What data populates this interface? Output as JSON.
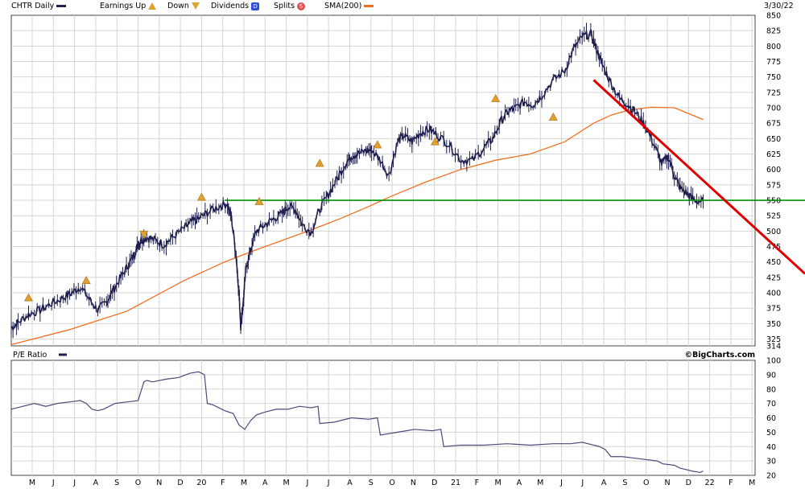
{
  "legend": {
    "ticker_label": "CHTR Daily",
    "earnings_up": "Earnings Up",
    "earnings_down": "Down",
    "dividends": "Dividends",
    "dividends_glyph": "D",
    "splits": "Splits",
    "splits_glyph": "S",
    "sma": "SMA(200)",
    "date": "3/30/22",
    "pe_label": "P/E Ratio",
    "credit": "©BigCharts.com"
  },
  "colors": {
    "price": "#1f1f4f",
    "sma": "#f07020",
    "support": "#009000",
    "trend": "#e00000",
    "grid": "#d4d4d4",
    "earnings_marker": "#e0a030",
    "dividend_box": "#3050e0",
    "split_circle": "#e05050"
  },
  "chart_data": [
    {
      "type": "line",
      "title": "CHTR Daily",
      "ylim": [
        314,
        850
      ],
      "y_ticks": [
        850,
        825,
        800,
        775,
        750,
        725,
        700,
        675,
        650,
        625,
        600,
        575,
        550,
        525,
        500,
        475,
        450,
        425,
        400,
        375,
        350,
        325,
        314
      ],
      "x_ticks": [
        "M",
        "J",
        "J",
        "A",
        "S",
        "O",
        "N",
        "D",
        "20",
        "F",
        "M",
        "A",
        "M",
        "J",
        "J",
        "A",
        "S",
        "O",
        "N",
        "D",
        "21",
        "F",
        "M",
        "A",
        "M",
        "J",
        "J",
        "A",
        "S",
        "O",
        "N",
        "D",
        "22",
        "F",
        "M"
      ],
      "grid": true,
      "legend_position": "top",
      "series": [
        {
          "name": "CHTR Daily",
          "x": [
            0,
            1.2,
            3,
            5,
            7,
            9,
            10.5,
            12,
            13.5,
            15,
            16.5,
            17.5,
            19,
            20.3,
            21.3,
            22,
            22.5,
            23.5,
            25,
            26.5,
            28,
            30,
            31.3,
            32.5,
            34,
            36,
            37.5,
            38.2,
            39,
            39.5,
            39.8,
            40.2,
            40.7,
            41.5,
            42.5,
            44,
            45.5,
            47,
            48,
            49.3,
            50.5,
            52,
            53.5,
            55,
            56.5,
            58,
            59,
            60,
            61.5,
            62.5,
            64,
            65.5,
            67,
            68,
            69.5,
            71,
            72.5,
            74,
            76,
            78,
            80,
            82,
            83.5,
            85,
            86.3,
            87.5,
            89,
            90.5,
            92,
            94,
            96,
            97.5,
            99,
            100.5,
            101.5,
            102.5,
            104,
            105.5,
            107,
            108.5,
            110,
            111.5,
            112.8,
            114,
            115,
            116,
            117.3,
            118.5,
            120
          ],
          "y": [
            343,
            352,
            365,
            372,
            383,
            392,
            400,
            410,
            390,
            372,
            385,
            402,
            425,
            445,
            462,
            478,
            485,
            490,
            485,
            478,
            490,
            505,
            515,
            520,
            530,
            540,
            545,
            520,
            460,
            400,
            345,
            380,
            440,
            470,
            500,
            510,
            520,
            528,
            540,
            535,
            510,
            498,
            535,
            560,
            585,
            610,
            622,
            625,
            630,
            632,
            615,
            590,
            645,
            655,
            645,
            660,
            665,
            655,
            640,
            615,
            615,
            635,
            650,
            680,
            695,
            700,
            710,
            705,
            720,
            745,
            760,
            795,
            815,
            820,
            795,
            770,
            740,
            715,
            705,
            690,
            670,
            640,
            610,
            620,
            590,
            570,
            560,
            550,
            548
          ]
        },
        {
          "name": "SMA(200)",
          "x": [
            0,
            10,
            20,
            30,
            37,
            42,
            47,
            52,
            57,
            62,
            66,
            72,
            78,
            84,
            90,
            96,
            101,
            104,
            107,
            111,
            115,
            120
          ],
          "y": [
            316,
            340,
            370,
            420,
            450,
            468,
            485,
            502,
            520,
            540,
            557,
            580,
            600,
            615,
            625,
            645,
            675,
            688,
            696,
            701,
            700,
            681
          ]
        }
      ],
      "annotations": [
        {
          "label": "Support",
          "y": 550
        },
        {
          "label": "Downtrend",
          "x": [
            101,
            129
          ],
          "y": [
            745,
            505
          ]
        }
      ],
      "earnings_markers": [
        {
          "x": 3,
          "y": 392,
          "kind": "up"
        },
        {
          "x": 13,
          "y": 420,
          "kind": "up"
        },
        {
          "x": 23,
          "y": 495,
          "kind": "down"
        },
        {
          "x": 33,
          "y": 555,
          "kind": "up"
        },
        {
          "x": 43,
          "y": 548,
          "kind": "up"
        },
        {
          "x": 53.5,
          "y": 610,
          "kind": "up"
        },
        {
          "x": 63.5,
          "y": 640,
          "kind": "up"
        },
        {
          "x": 73.5,
          "y": 645,
          "kind": "up"
        },
        {
          "x": 84,
          "y": 715,
          "kind": "up"
        },
        {
          "x": 94,
          "y": 685,
          "kind": "up"
        }
      ]
    },
    {
      "type": "line",
      "title": "P/E Ratio",
      "ylim": [
        20,
        100
      ],
      "y_ticks": [
        100,
        90,
        80,
        70,
        60,
        50,
        40,
        30,
        20
      ],
      "series": [
        {
          "name": "P/E Ratio",
          "x": [
            0,
            2,
            4,
            6,
            8,
            10,
            12,
            13,
            14,
            15,
            16,
            18,
            20,
            22,
            23,
            23.5,
            24.5,
            27,
            29,
            31,
            32.5,
            33.5,
            34,
            35,
            37,
            38.5,
            39.5,
            40.5,
            41.5,
            42.5,
            44,
            46,
            48,
            50,
            52,
            53.2,
            53.5,
            56,
            59,
            62,
            63.5,
            64,
            67,
            70,
            73,
            74.5,
            75,
            78,
            82,
            86,
            90,
            94,
            97,
            99,
            101,
            102,
            103,
            104,
            106,
            108,
            110,
            112,
            113,
            115,
            116,
            117,
            118,
            119.5,
            120
          ],
          "y": [
            66,
            68,
            70,
            68,
            70,
            71,
            72,
            70,
            66,
            65,
            66,
            70,
            71,
            72,
            85,
            86,
            85,
            87,
            88,
            91,
            92,
            90,
            70,
            69,
            65,
            63,
            55,
            52,
            58,
            62,
            64,
            66,
            66,
            68,
            67,
            68,
            56,
            57,
            60,
            59,
            60,
            48,
            50,
            52,
            51,
            52,
            40,
            41,
            41,
            42,
            41,
            42,
            42,
            43,
            41,
            40,
            38,
            33,
            33,
            32,
            31,
            30,
            28,
            27,
            25,
            24,
            23,
            22,
            23
          ]
        }
      ]
    }
  ]
}
